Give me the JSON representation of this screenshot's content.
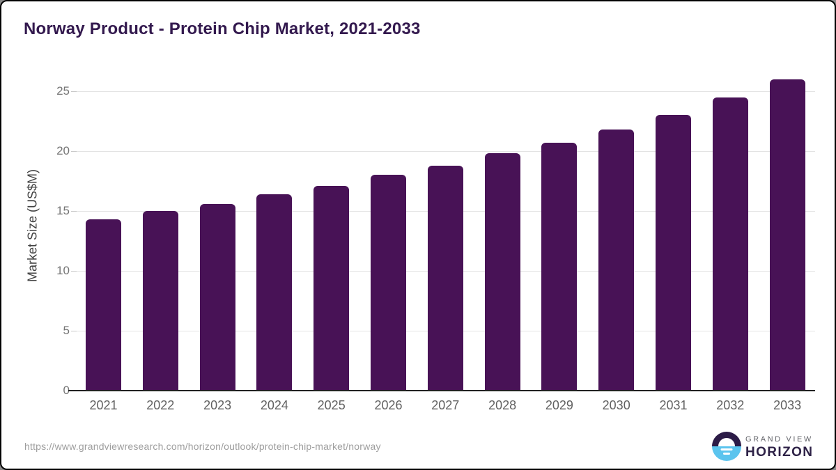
{
  "page": {
    "title": "Norway Product - Protein Chip Market, 2021-2033"
  },
  "chart_data": {
    "type": "bar",
    "title": "Norway Product - Protein Chip Market, 2021-2033",
    "categories": [
      "2021",
      "2022",
      "2023",
      "2024",
      "2025",
      "2026",
      "2027",
      "2028",
      "2029",
      "2030",
      "2031",
      "2032",
      "2033"
    ],
    "values": [
      14.3,
      15.0,
      15.6,
      16.4,
      17.1,
      18.0,
      18.8,
      19.8,
      20.7,
      21.8,
      23.0,
      24.5,
      26.0
    ],
    "xlabel": "",
    "ylabel": "Market Size (US$M)",
    "yticks": [
      0,
      5,
      10,
      15,
      20,
      25
    ],
    "ylim": [
      0,
      26.5
    ],
    "grid": true,
    "legend": false,
    "bar_color": "#481256"
  },
  "footer": {
    "source_url": "https://www.grandviewresearch.com/horizon/outlook/protein-chip-market/norway",
    "logo": {
      "line1": "GRAND VIEW",
      "line2": "HORIZON"
    }
  },
  "colors": {
    "title": "#33194e",
    "bar": "#481256",
    "gridline": "#e3e3e3",
    "axis_line": "#212121",
    "ytick_label": "#757575",
    "year_label": "#616161",
    "ylabel": "#424242",
    "source": "#9e9e9e",
    "logo_navy": "#2c1b47",
    "logo_blue": "#5bc4ee",
    "logo_text": "#2e2247"
  }
}
